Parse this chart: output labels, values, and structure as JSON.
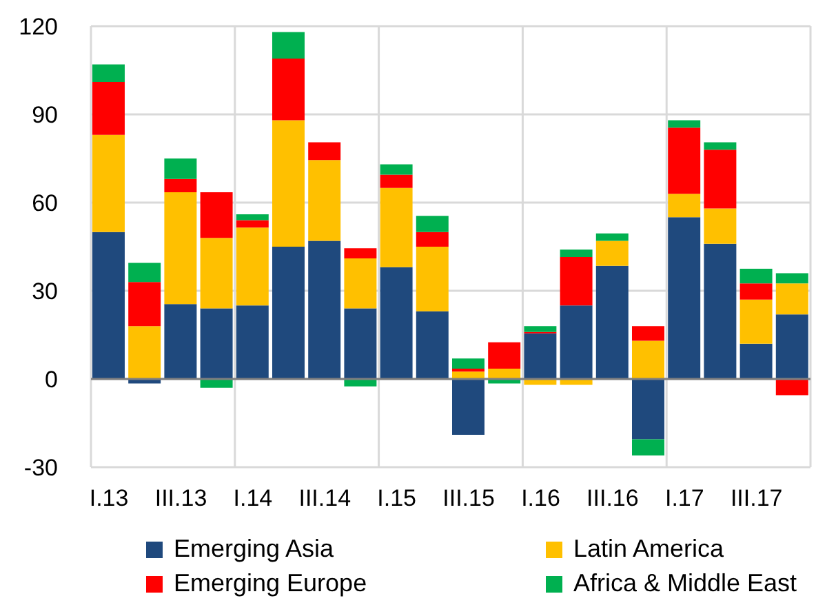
{
  "chart_data": {
    "type": "bar",
    "stacked": true,
    "categories": [
      "I.13",
      null,
      "III.13",
      null,
      "I.14",
      null,
      "III.14",
      null,
      "I.15",
      null,
      "III.15",
      null,
      "I.16",
      null,
      "III.16",
      null,
      "I.17",
      null,
      "III.17",
      null
    ],
    "series": [
      {
        "name": "Emerging Asia",
        "color": "#1f497d",
        "values": [
          50,
          -1.5,
          25.5,
          24,
          25,
          45,
          47,
          24,
          38,
          23,
          -19,
          0,
          15.5,
          25,
          38.5,
          -20.5,
          55,
          46,
          12,
          22
        ]
      },
      {
        "name": "Latin America",
        "color": "#ffc000",
        "values": [
          33,
          18,
          38,
          24,
          26.5,
          43,
          27.5,
          17,
          27,
          22,
          2.5,
          3.5,
          -2,
          -2,
          8.5,
          13,
          8,
          12,
          15,
          10.5
        ]
      },
      {
        "name": "Emerging Europe",
        "color": "#ff0000",
        "values": [
          18,
          15,
          4.5,
          15.5,
          2.5,
          21,
          6,
          3.5,
          4.5,
          5,
          1,
          9,
          0.5,
          16.5,
          0,
          5,
          22.5,
          20,
          5.5,
          -5.5
        ]
      },
      {
        "name": "Africa & Middle East",
        "color": "#00b050",
        "values": [
          6,
          6.5,
          7,
          -3,
          2,
          9,
          0,
          -2.5,
          3.5,
          5.5,
          3.5,
          -1.5,
          2,
          2.5,
          2.5,
          -5.5,
          2.5,
          2.5,
          5,
          3.5
        ]
      }
    ],
    "ylim": [
      -30,
      120
    ],
    "yticks": [
      -30,
      0,
      30,
      60,
      90,
      120
    ],
    "grid": true,
    "legend": "bottom"
  }
}
